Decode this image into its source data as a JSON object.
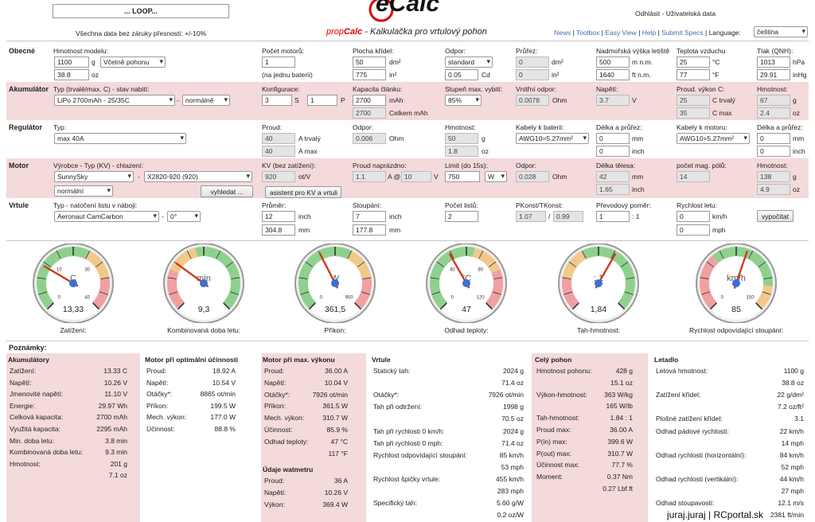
{
  "header": {
    "loop_button": "... LOOP...",
    "disclaimer": "Všechna data bez záruky přesnosti: +/-10%",
    "logo_text": "eCalc",
    "tagline_prefix": "prop",
    "tagline_brand": "Calc",
    "tagline_rest": " - Kalkulačka pro vrtulový pohon",
    "logout": "Odhlásit - Uživatelská data",
    "nav": [
      "News",
      "Toolbox",
      "Easy View",
      "Help",
      "Submit Specs"
    ],
    "language_label": "Language:",
    "language_value": "čeština"
  },
  "general": {
    "section": "Obecné",
    "model_weight_label": "Hmotnost modelu:",
    "model_weight": "1100",
    "model_weight_unit": "g",
    "model_weight_mode": "Včetně pohonu",
    "model_weight_oz": "38.8",
    "oz_unit": "oz",
    "motors_label": "Počet motorů:",
    "motors": "1",
    "motors_note": "(na jednu baterii)",
    "wing_area_label": "Plocha křídel:",
    "wing_area": "50",
    "wing_area_unit": "dm²",
    "wing_area_in": "775",
    "wing_area_in_unit": "in²",
    "drag_label": "Odpor:",
    "drag": "standard",
    "drag_cd": "0.05",
    "drag_cd_unit": "Cd",
    "cross_label": "Průřez:",
    "cross_dm": "0",
    "cross_dm_unit": "dm²",
    "cross_in": "0",
    "cross_in_unit": "in²",
    "altitude_label": "Nadmořská výška letiště",
    "altitude": "500",
    "altitude_unit": "m n.m.",
    "altitude_ft": "1640",
    "altitude_ft_unit": "ft n.m.",
    "temp_label": "Teplota vzduchu",
    "temp_c": "25",
    "temp_c_unit": "°C",
    "temp_f": "77",
    "temp_f_unit": "°F",
    "pressure_label": "Tlak (QNH):",
    "pressure": "1013",
    "pressure_unit": "hPa",
    "pressure_inhg": "29.91",
    "pressure_inhg_unit": "inHg"
  },
  "battery": {
    "section": "Akumulátor",
    "type_label": "Typ (trvalé/max. C) - stav nabití:",
    "type": "LiPo 2700mAh - 25/35C",
    "charge": "normálně",
    "config_label": "Konfigurace:",
    "cfg_s": "3",
    "cfg_s_unit": "S",
    "cfg_p": "1",
    "cfg_p_unit": "P",
    "capacity_label": "Kapacita článku:",
    "capacity": "2700",
    "capacity_unit": "mAh",
    "capacity_total": "2700",
    "capacity_total_unit": "Celkem mAh",
    "discharge_label": "Stupeň max. vybití:",
    "discharge": "85%",
    "resistance_label": "Vnitřní odpor:",
    "resistance": "0.0078",
    "resistance_unit": "Ohm",
    "voltage_label": "Napětí:",
    "voltage": "3.7",
    "voltage_unit": "V",
    "current_label": "Proud. výkon C:",
    "c_cont": "25",
    "c_cont_unit": "C trvalý",
    "c_max": "35",
    "c_max_unit": "C max",
    "weight_label": "Hmotnost:",
    "weight_g": "67",
    "weight_g_unit": "g",
    "weight_oz": "2.4",
    "weight_oz_unit": "oz"
  },
  "esc": {
    "section": "Regulátor",
    "type_label": "Typ:",
    "type": "max 40A",
    "current_label": "Proud:",
    "cur_cont": "40",
    "cur_cont_unit": "A trvalý",
    "cur_max": "40",
    "cur_max_unit": "A max",
    "resistance_label": "Odpor:",
    "resistance": "0.006",
    "resistance_unit": "Ohm",
    "weight_label": "Hmotnost:",
    "weight_g": "50",
    "weight_g_unit": "g",
    "weight_oz": "1.8",
    "weight_oz_unit": "oz",
    "batt_cable_label": "Kabely k baterii:",
    "batt_cable": "AWG10=5.27mm²",
    "batt_len_label": "Délka a průřez:",
    "batt_len_mm": "0",
    "mm_unit": "mm",
    "batt_len_in": "0",
    "inch_unit": "inch",
    "motor_cable_label": "Kabely k motoru:",
    "motor_cable": "AWG10=5.27mm²",
    "motor_len_label": "Délka a průřez:",
    "motor_len_mm": "0",
    "motor_len_in": "0"
  },
  "motor": {
    "section": "Motor",
    "type_label": "Výrobce - Typ (KV) - chlazení:",
    "maker": "SunnySky",
    "model": "X2820-920 (920)",
    "cooling": "normální",
    "search_btn": "vyhledat ...",
    "kv_label": "KV (bez zatížení):",
    "kv": "920",
    "kv_unit": "ot/V",
    "kv_btn": "asistent pro KV a vrtuli",
    "noload_label": "Proud naprázdno:",
    "noload_a": "1.1",
    "noload_at": "A @",
    "noload_v": "10",
    "noload_v_unit": "V",
    "limit_label": "Limit (do 15s):",
    "limit": "750",
    "limit_unit": "W",
    "resistance_label": "Odpor:",
    "resistance": "0.028",
    "resistance_unit": "Ohm",
    "length_label": "Délka tělesa:",
    "length_mm": "42",
    "length_mm_unit": "mm",
    "length_in": "1.65",
    "length_in_unit": "inch",
    "poles_label": "počet mag. pólů:",
    "poles": "14",
    "weight_label": "Hmotnost:",
    "weight_g": "138",
    "weight_g_unit": "g",
    "weight_oz": "4.9",
    "weight_oz_unit": "oz"
  },
  "prop": {
    "section": "Vrtule",
    "type_label": "Typ - natočení listu v náboji:",
    "type": "Aeronaut CamCarbon",
    "angle": "0°",
    "diameter_label": "Průměr:",
    "diameter_in": "12",
    "diameter_in_unit": "inch",
    "diameter_mm": "304.8",
    "diameter_mm_unit": "mm",
    "pitch_label": "Stoupání:",
    "pitch_in": "7",
    "pitch_in_unit": "inch",
    "pitch_mm": "177.8",
    "pitch_mm_unit": "mm",
    "blades_label": "Počet listů:",
    "blades": "2",
    "pconst_label": "PKonst/TKonst:",
    "pconst": "1.07",
    "pconst_sep": "/",
    "tconst": "0.99",
    "gear_label": "Převodový poměr:",
    "gear": "1",
    "gear_unit": ": 1",
    "speed_label": "Rychlost letu:",
    "speed_kmh": "0",
    "speed_kmh_unit": "km/h",
    "speed_mph": "0",
    "speed_mph_unit": "mph",
    "calc_btn": "vypočítat"
  },
  "gauges": [
    {
      "unit": "C",
      "value": "13,33",
      "caption": "Zatížení:",
      "ticks": [
        "0",
        "10",
        "30",
        "40"
      ],
      "needle": 0.28
    },
    {
      "unit": "min",
      "value": "9,3",
      "caption": "Kombinovaná doba letu:",
      "ticks": [],
      "needle": 0.3
    },
    {
      "unit": "W",
      "value": "361,5",
      "caption": "Příkon:",
      "ticks": [
        "0",
        "900"
      ],
      "needle": 0.4
    },
    {
      "unit": "°C",
      "value": "47",
      "caption": "Odhad teploty:",
      "ticks": [
        "0",
        "40",
        "80",
        "120"
      ],
      "needle": 0.39
    },
    {
      "unit": ": 1",
      "value": "1,84",
      "caption": "Tah-hmotnost:",
      "ticks": [],
      "needle": 0.61
    },
    {
      "unit": "km/h",
      "value": "85",
      "caption": "Rychlost odpovídající stoupání:",
      "ticks": [
        "0",
        "150"
      ],
      "needle": 0.57
    }
  ],
  "notes_title": "Poznámky:",
  "results": {
    "battery": {
      "title": "Akumulátory",
      "rows": [
        [
          "Zatížení:",
          "13.33 C"
        ],
        [
          "Napětí:",
          "10.26 V"
        ],
        [
          "Jmenovité napětí:",
          "11.10 V"
        ],
        [
          "Energie:",
          "29.97 Wh"
        ],
        [
          "Celková kapacita:",
          "2700 mAh"
        ],
        [
          "Využitá kapacita:",
          "2295 mAh"
        ],
        [
          "Min. doba letu:",
          "3.8 min"
        ],
        [
          "Kombinovaná doba letu:",
          "9.3 min"
        ],
        [
          "Hmotnost:",
          "201 g"
        ],
        [
          "",
          "7.1 oz"
        ]
      ]
    },
    "motor_opt": {
      "title": "Motor při optimální účinnosti",
      "rows": [
        [
          "Proud:",
          "18.92 A"
        ],
        [
          "Napětí:",
          "10.54 V"
        ],
        [
          "Otáčky*:",
          "8865 ot/min"
        ],
        [
          "Příkon:",
          "199.5 W"
        ],
        [
          "Mech. výkon:",
          "177.0 W"
        ],
        [
          "Účinnost:",
          "88.8 %"
        ]
      ]
    },
    "motor_max": {
      "title": "Motor při max. výkonu",
      "rows": [
        [
          "Proud:",
          "36.00 A"
        ],
        [
          "Napětí:",
          "10.04 V"
        ],
        [
          "Otáčky*:",
          "7926 ot/min"
        ],
        [
          "Příkon:",
          "361.5 W"
        ],
        [
          "Mech. výkon:",
          "310.7 W"
        ],
        [
          "Účinnost:",
          "85.9 %"
        ],
        [
          "Odhad teploty:",
          "47 °C"
        ],
        [
          "",
          "117 °F"
        ]
      ],
      "wattmeter_title": "Údaje watmetru",
      "wattmeter_rows": [
        [
          "Proud:",
          "36 A"
        ],
        [
          "Napětí:",
          "10.26 V"
        ],
        [
          "Výkon:",
          "369.4 W"
        ]
      ]
    },
    "prop": {
      "title": "Vrtule",
      "rows": [
        [
          "Statický tah:",
          "2024 g"
        ],
        [
          "",
          "71.4 oz"
        ],
        [
          "Otáčky*:",
          "7926 ot/min"
        ],
        [
          "Tah při odtržení:",
          "1998 g"
        ],
        [
          "",
          "70.5 oz"
        ],
        [
          "Tah při rychlosti 0 km/h:",
          "2024 g"
        ],
        [
          "Tah při rychlosti 0 mph:",
          "71.4 oz"
        ],
        [
          "Rychlost odpovídající stoupání:",
          "85 km/h"
        ],
        [
          "",
          "53 mph"
        ],
        [
          "Rychlost špičky vrtule:",
          "455 km/h"
        ],
        [
          "",
          "283 mph"
        ],
        [
          "Specifický tah:",
          "5.60 g/W"
        ],
        [
          "",
          "0.2 oz/W"
        ]
      ]
    },
    "drive": {
      "title": "Celý pohon",
      "rows": [
        [
          "Hmotnost pohonu:",
          "428 g"
        ],
        [
          "",
          "15.1 oz"
        ],
        [
          "Výkon-hmotnost:",
          "363 W/kg"
        ],
        [
          "",
          "165 W/lb"
        ],
        [
          "Tah-hmotnost:",
          "1.84 : 1"
        ],
        [
          "Proud max:",
          "36.00 A"
        ],
        [
          "P(in) max:",
          "399.6 W"
        ],
        [
          "P(out) max:",
          "310.7 W"
        ],
        [
          "Účinnost max:",
          "77.7 %"
        ],
        [
          "Moment:",
          "0.37 Nm"
        ],
        [
          "",
          "0.27 Lbf.ft"
        ]
      ]
    },
    "plane": {
      "title": "Letadlo",
      "rows": [
        [
          "Letová hmotnost:",
          "1100 g"
        ],
        [
          "",
          "38.8 oz"
        ],
        [
          "Zatížení křídel:",
          "22 g/dm²"
        ],
        [
          "",
          "7.2 oz/ft²"
        ],
        [
          "Plošné zatížení křídel:",
          "3.1"
        ],
        [
          "Odhad pádové rychlosti:",
          "22 km/h"
        ],
        [
          "",
          "14 mph"
        ],
        [
          "Odhad rychlosti (horizontální):",
          "84 km/h"
        ],
        [
          "",
          "52 mph"
        ],
        [
          "Odhad rychlosti (vertikální):",
          "44 km/h"
        ],
        [
          "",
          "27 mph"
        ],
        [
          "Odhad stoupavosti:",
          "12.1 m/s"
        ],
        [
          "",
          "2381 ft/min"
        ]
      ]
    }
  },
  "footer_credit": "juraj.juraj | RCportal.sk"
}
